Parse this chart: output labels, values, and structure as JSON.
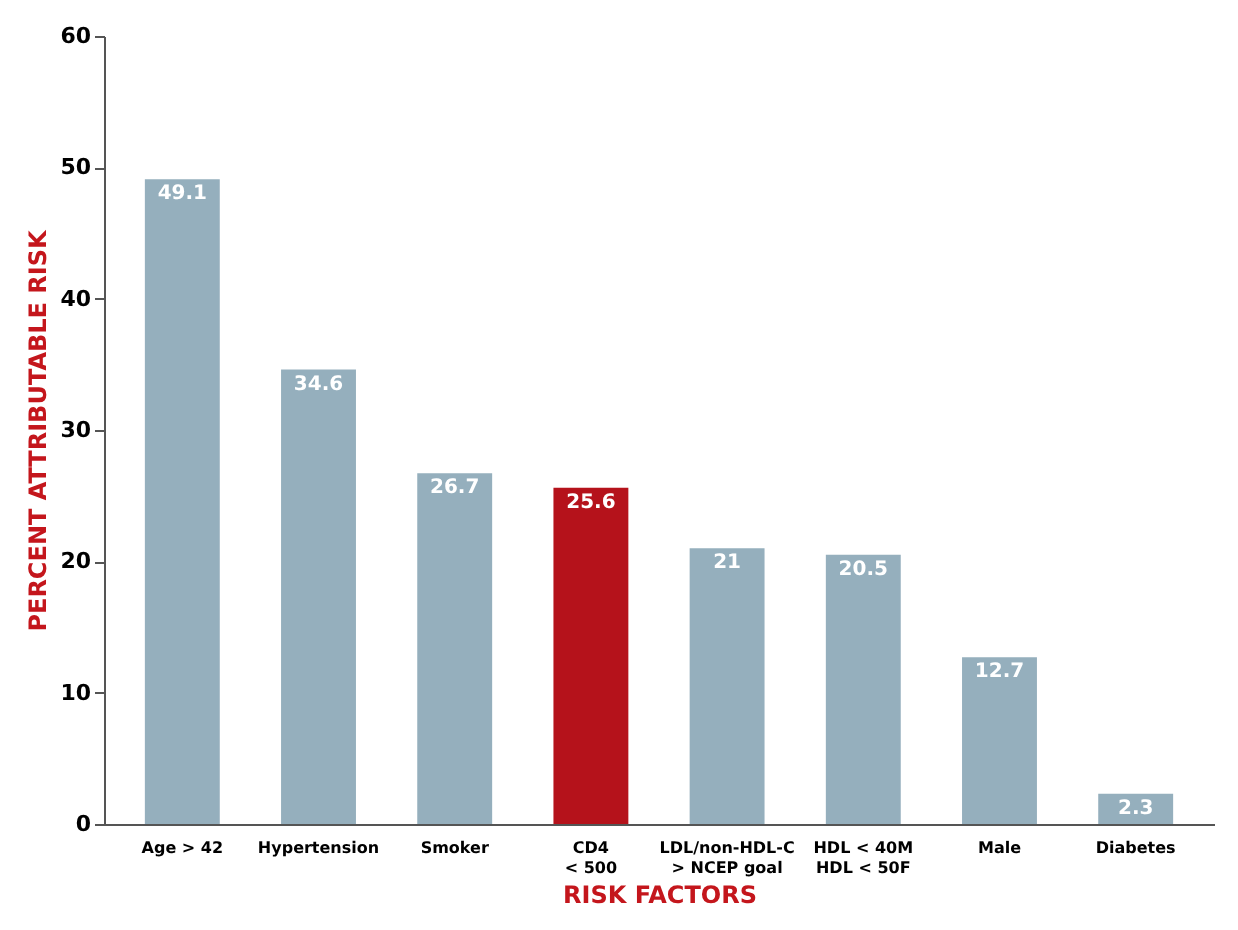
{
  "chart_data": {
    "type": "bar",
    "xlabel": "RISK FACTORS",
    "ylabel": "PERCENT ATTRIBUTABLE RISK",
    "categories": [
      "Age > 42",
      "Hypertension",
      "Smoker",
      "CD4\n< 500",
      "LDL/non-HDL-C\n> NCEP goal",
      "HDL < 40M\nHDL < 50F",
      "Male",
      "Diabetes"
    ],
    "values": [
      49.1,
      34.6,
      26.7,
      25.6,
      21,
      20.5,
      12.7,
      2.3
    ],
    "colors": [
      "#95afbd",
      "#95afbd",
      "#95afbd",
      "#b5121b",
      "#95afbd",
      "#95afbd",
      "#95afbd",
      "#95afbd"
    ],
    "ylim": [
      0,
      60
    ],
    "yticks": [
      0,
      10,
      20,
      30,
      40,
      50,
      60
    ],
    "grid": false,
    "data_labels": true
  }
}
